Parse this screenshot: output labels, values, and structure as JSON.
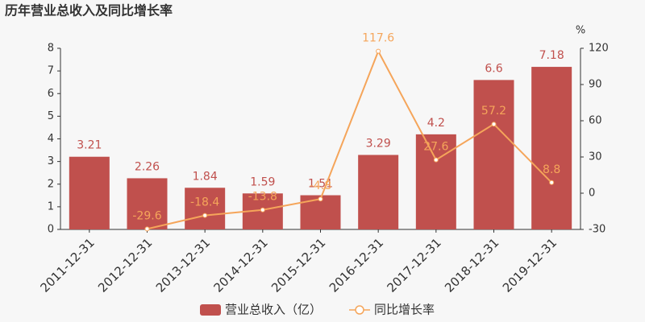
{
  "chart_data": {
    "type": "bar",
    "title": "历年营业总收入及同比增长率",
    "y2_unit": "%",
    "categories": [
      "2011-12-31",
      "2012-12-31",
      "2013-12-31",
      "2014-12-31",
      "2015-12-31",
      "2016-12-31",
      "2017-12-31",
      "2018-12-31",
      "2019-12-31"
    ],
    "series": [
      {
        "name": "营业总收入（亿）",
        "type": "bar",
        "color": "#c0504d",
        "values": [
          3.21,
          2.26,
          1.84,
          1.59,
          1.51,
          3.29,
          4.2,
          6.6,
          7.18
        ]
      },
      {
        "name": "同比增长率",
        "type": "line",
        "axis": "y2",
        "color": "#f5a55a",
        "values": [
          null,
          -29.6,
          -18.4,
          -13.8,
          -4.8,
          117.6,
          27.6,
          57.2,
          8.8
        ]
      }
    ],
    "ylim": [
      0,
      8
    ],
    "yticks": [
      0,
      1,
      2,
      3,
      4,
      5,
      6,
      7,
      8
    ],
    "y2lim": [
      -30,
      120
    ],
    "y2ticks": [
      -30,
      0,
      30,
      60,
      90,
      120
    ]
  }
}
